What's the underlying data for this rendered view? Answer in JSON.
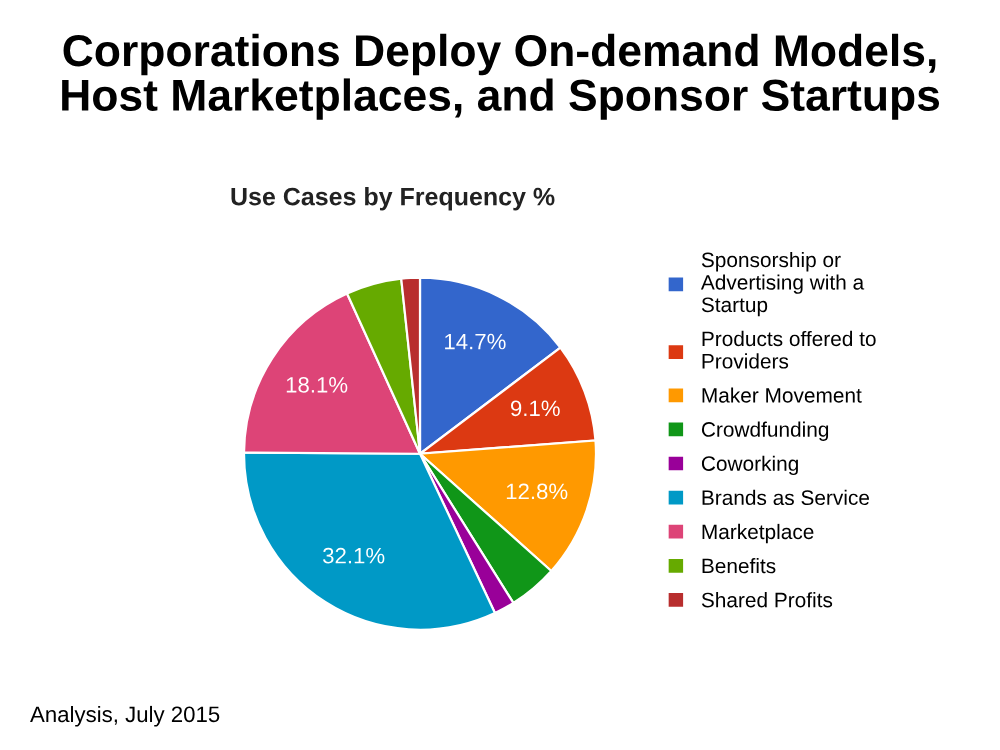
{
  "chart_data": {
    "type": "pie",
    "title": "Corporations Deploy On-demand Models,\nHost Marketplaces, and Sponsor Startups",
    "subtitle": "Use Cases by Frequency %",
    "categories": [
      "Sponsorship or\nAdvertising with a\nStartup",
      "Products offered to\nProviders",
      "Maker Movement",
      "Crowdfunding",
      "Coworking",
      "Brands as Service",
      "Marketplace",
      "Benefits",
      "Shared Profits"
    ],
    "values": [
      14.7,
      9.1,
      12.8,
      4.5,
      1.9,
      32.1,
      18.1,
      5.1,
      1.7
    ],
    "colors": [
      "#3366cc",
      "#dc3912",
      "#ff9900",
      "#109618",
      "#990099",
      "#0099c6",
      "#dd4477",
      "#66aa00",
      "#b82e2e"
    ],
    "value_labels": [
      "14.7%",
      "9.1%",
      "12.8%",
      null,
      null,
      "32.1%",
      "18.1%",
      null,
      null
    ],
    "legend": "right",
    "annotations": [
      "Analysis, July 2015"
    ]
  }
}
